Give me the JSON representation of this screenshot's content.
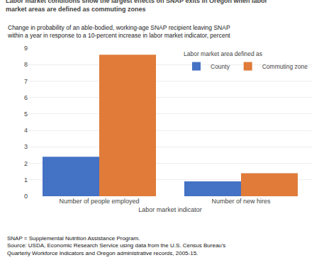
{
  "chart_data": {
    "type": "bar",
    "title": "Labor market conditions show the largest effects on SNAP exits in Oregon when labor\nmarket areas are defined as commuting zones",
    "subtitle": "Change in probability of an able-bodied, working-age SNAP recipient leaving SNAP\nwithin a year in response to a 10-percent increase in labor market indicator, percent",
    "categories": [
      "Number of people employed",
      "Number of new hires"
    ],
    "series": [
      {
        "name": "County",
        "color": "#4472C4",
        "values": [
          2.4,
          0.9
        ]
      },
      {
        "name": "Commuting zone",
        "color": "#E07B39",
        "values": [
          8.6,
          1.4
        ]
      }
    ],
    "xlabel": "Labor market indicator",
    "legend_title": "Labor market area defined as",
    "footnote": "SNAP = Supplemental Nutrition Assistance Program.\nSource: USDA, Economic Research Service using data from the U.S. Census Bureau's\nQuarterly Workforce Indicators and Oregon administrative records, 2005-15.",
    "ylim": [
      0,
      9
    ],
    "yticks": [
      0,
      1,
      2,
      3,
      4,
      5,
      6,
      7,
      8,
      9
    ],
    "grid": true,
    "legend": "upper right"
  }
}
